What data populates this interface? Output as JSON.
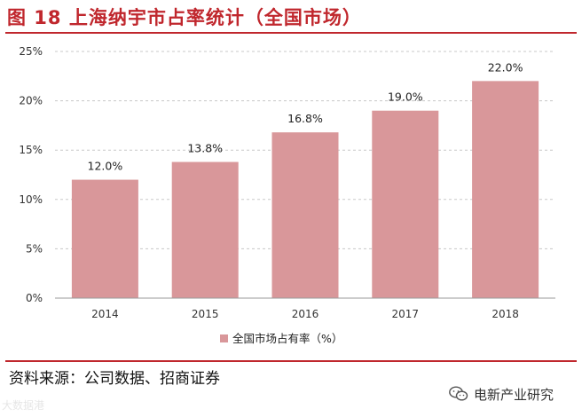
{
  "title": "图 18  上海纳宇市占率统计（全国市场）",
  "source": "资料来源：公司数据、招商证券",
  "wechat_name": "电新产业研究",
  "watermark": "大数据港",
  "colors": {
    "accent": "#c0272d",
    "bar": "#d9979a",
    "grid": "#c8c8c8"
  },
  "chart_data": {
    "type": "bar",
    "categories": [
      "2014",
      "2015",
      "2016",
      "2017",
      "2018"
    ],
    "values": [
      12.0,
      13.8,
      16.8,
      19.0,
      22.0
    ],
    "data_labels": [
      "12.0%",
      "13.8%",
      "16.8%",
      "19.0%",
      "22.0%"
    ],
    "ylim": [
      0,
      25
    ],
    "yticks": [
      0,
      5,
      10,
      15,
      20,
      25
    ],
    "ytick_labels": [
      "0%",
      "5%",
      "10%",
      "15%",
      "20%",
      "25%"
    ],
    "legend": "全国市场占有率（%）",
    "legend_position": "bottom",
    "grid": true,
    "xlabel": "",
    "ylabel": ""
  }
}
